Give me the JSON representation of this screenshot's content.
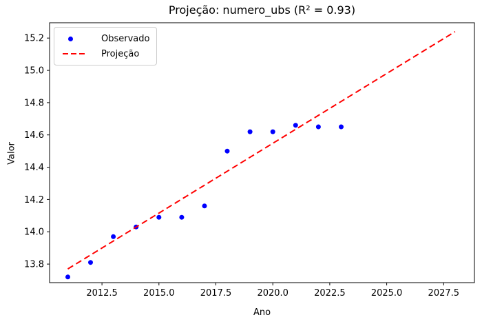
{
  "chart_data": {
    "type": "scatter",
    "title": "Projeção: numero_ubs (R² = 0.93)",
    "xlabel": "Ano",
    "ylabel": "Valor",
    "xlim": [
      2010.2,
      2028.85
    ],
    "ylim": [
      13.685,
      15.295
    ],
    "x_ticks": [
      2012.5,
      2015.0,
      2017.5,
      2020.0,
      2022.5,
      2025.0,
      2027.5
    ],
    "y_ticks": [
      13.8,
      14.0,
      14.2,
      14.4,
      14.6,
      14.8,
      15.0,
      15.2
    ],
    "grid": false,
    "legend_position": "upper left",
    "background_color": "#ffffff",
    "axis_color": "#000000",
    "series": [
      {
        "name": "Observado",
        "kind": "scatter",
        "color": "#0000ff",
        "x": [
          2011,
          2012,
          2013,
          2014,
          2015,
          2016,
          2017,
          2018,
          2019,
          2020,
          2021,
          2022,
          2023
        ],
        "y": [
          13.72,
          13.81,
          13.97,
          14.03,
          14.09,
          14.09,
          14.16,
          14.5,
          14.62,
          14.62,
          14.66,
          14.65,
          14.65
        ]
      },
      {
        "name": "Projeção",
        "kind": "line",
        "style": "dashed",
        "color": "#ff0000",
        "x": [
          2011,
          2028
        ],
        "y": [
          13.77,
          15.24
        ]
      }
    ]
  }
}
